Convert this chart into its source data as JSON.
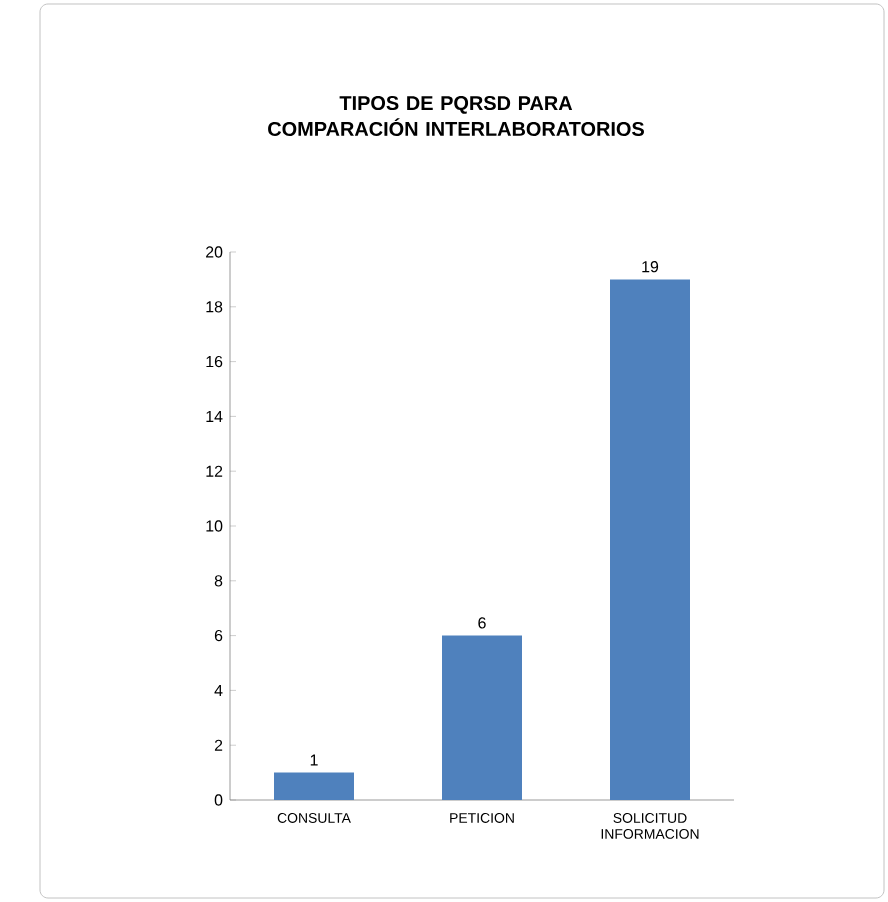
{
  "chart_data": {
    "type": "bar",
    "title": "TIPOS DE PQRSD PARA COMPARACIÓN INTERLABORATORIOS",
    "categories": [
      "CONSULTA",
      "PETICION",
      "SOLICITUD INFORMACION"
    ],
    "values": [
      1,
      6,
      19
    ],
    "color": "#4f81bd",
    "ylim": [
      0,
      20
    ],
    "yticks": [
      0,
      2,
      4,
      6,
      8,
      10,
      12,
      14,
      16,
      18,
      20
    ],
    "data_labels": true
  }
}
